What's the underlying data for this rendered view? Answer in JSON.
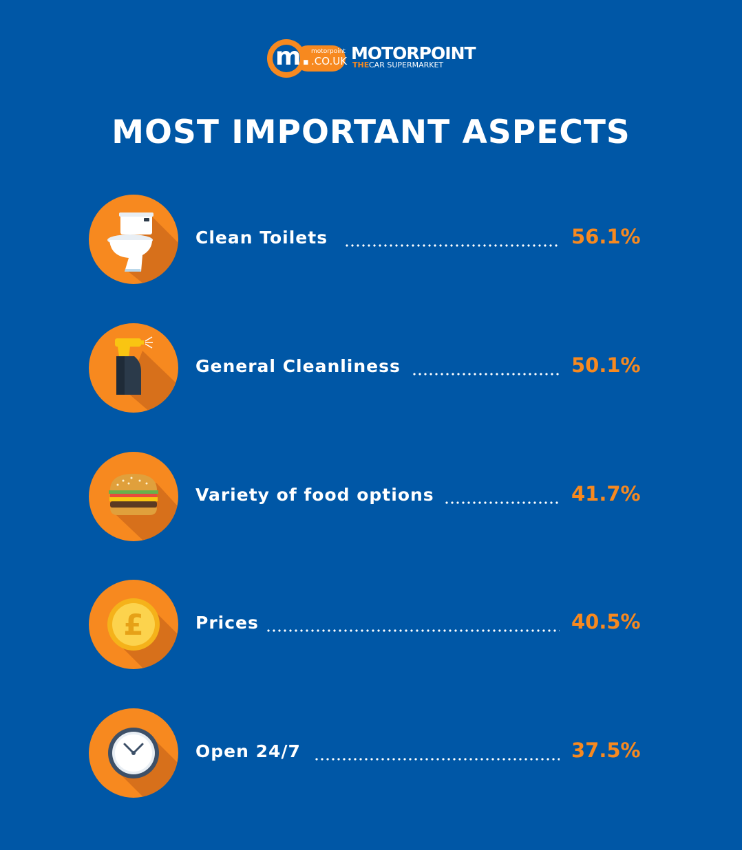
{
  "brand": {
    "badge_letter": "m.",
    "badge_small": "motorpoint",
    "badge_domain": ".CO.UK",
    "name": "MOTORPOINT",
    "tag_the": "THE",
    "tag_rest": "CAR SUPERMARKET",
    "colors": {
      "background": "#0057a6",
      "accent": "#f7891f"
    }
  },
  "title": "MOST IMPORTANT ASPECTS",
  "items": [
    {
      "label": "Clean Toilets",
      "value": "56.1%",
      "icon": "toilet-icon"
    },
    {
      "label": "General Cleanliness",
      "value": "50.1%",
      "icon": "spray-bottle-icon"
    },
    {
      "label": "Variety of food options",
      "value": "41.7%",
      "icon": "burger-icon"
    },
    {
      "label": "Prices",
      "value": "40.5%",
      "icon": "pound-coin-icon"
    },
    {
      "label": "Open 24/7",
      "value": "37.5%",
      "icon": "clock-icon"
    }
  ]
}
